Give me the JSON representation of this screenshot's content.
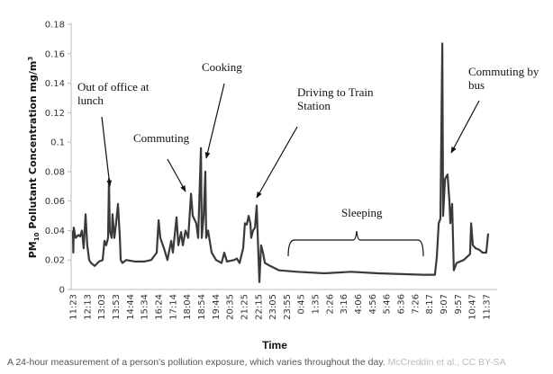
{
  "chart_data": {
    "type": "line",
    "title": "",
    "xlabel": "Time",
    "ylabel_prefix": "PM",
    "ylabel_sub": "10",
    "ylabel_rest": " Pollutant Concentration mg/m",
    "ylabel_sup": "3",
    "ylim": [
      0,
      0.18
    ],
    "yticks": [
      "0",
      "0.02",
      "0.04",
      "0.06",
      "0.08",
      "0.1",
      "0.12",
      "0.14",
      "0.16",
      "0.18"
    ],
    "xticks": [
      "11:23",
      "12:13",
      "13:03",
      "13:53",
      "14:44",
      "15:34",
      "16:24",
      "17:14",
      "18:04",
      "18:54",
      "19:44",
      "20:35",
      "21:25",
      "22:15",
      "23:05",
      "23:55",
      "0:45",
      "1:35",
      "2:26",
      "3:16",
      "4:06",
      "4:56",
      "5:46",
      "6:36",
      "7:26",
      "8:17",
      "9:07",
      "9:57",
      "10:47",
      "11:37"
    ],
    "x_unit": "hours since 11:23",
    "series": [
      {
        "name": "PM10",
        "color": "#3a3a3a",
        "x": [
          0,
          0.02,
          0.05,
          0.16,
          0.32,
          0.42,
          0.53,
          0.63,
          0.74,
          0.84,
          0.95,
          1.06,
          1.27,
          1.53,
          1.74,
          1.85,
          1.95,
          2.06,
          2.11,
          2.16,
          2.27,
          2.32,
          2.43,
          2.53,
          2.64,
          2.75,
          2.8,
          2.9,
          3.12,
          3.64,
          4.17,
          4.59,
          4.91,
          5.02,
          5.12,
          5.33,
          5.54,
          5.76,
          5.86,
          6.07,
          6.18,
          6.34,
          6.44,
          6.6,
          6.76,
          6.92,
          7.02,
          7.23,
          7.34,
          7.5,
          7.55,
          7.66,
          7.76,
          7.81,
          7.92,
          8.13,
          8.39,
          8.71,
          8.87,
          9.03,
          9.45,
          9.61,
          9.77,
          9.98,
          10.08,
          10.19,
          10.3,
          10.4,
          10.45,
          10.56,
          10.67,
          10.77,
          10.88,
          10.93,
          11.03,
          11.14,
          11.25,
          11.56,
          12.09,
          13.15,
          14.73,
          16.31,
          17.9,
          20.54,
          21.22,
          21.33,
          21.44,
          21.54,
          21.65,
          21.7,
          21.81,
          21.96,
          22.07,
          22.12,
          22.23,
          22.33,
          22.49,
          22.91,
          23.28,
          23.34,
          23.44,
          23.6,
          23.81,
          24.02,
          24.23,
          24.34
        ],
        "y": [
          0.04,
          0.025,
          0.042,
          0.035,
          0.037,
          0.036,
          0.04,
          0.028,
          0.051,
          0.03,
          0.02,
          0.018,
          0.016,
          0.019,
          0.02,
          0.033,
          0.03,
          0.035,
          0.075,
          0.04,
          0.035,
          0.051,
          0.035,
          0.045,
          0.058,
          0.035,
          0.02,
          0.018,
          0.02,
          0.019,
          0.019,
          0.02,
          0.025,
          0.047,
          0.035,
          0.028,
          0.02,
          0.033,
          0.025,
          0.049,
          0.03,
          0.039,
          0.03,
          0.04,
          0.035,
          0.065,
          0.05,
          0.045,
          0.035,
          0.096,
          0.035,
          0.05,
          0.08,
          0.035,
          0.04,
          0.025,
          0.02,
          0.018,
          0.025,
          0.019,
          0.02,
          0.021,
          0.018,
          0.028,
          0.045,
          0.044,
          0.05,
          0.045,
          0.035,
          0.04,
          0.042,
          0.057,
          0.02,
          0.005,
          0.03,
          0.025,
          0.018,
          0.016,
          0.013,
          0.012,
          0.011,
          0.012,
          0.011,
          0.01,
          0.01,
          0.022,
          0.045,
          0.048,
          0.167,
          0.05,
          0.075,
          0.078,
          0.06,
          0.045,
          0.058,
          0.013,
          0.018,
          0.02,
          0.024,
          0.045,
          0.03,
          0.028,
          0.027,
          0.025,
          0.025,
          0.038
        ]
      }
    ],
    "annotations": {
      "lunch": [
        "Out of office at",
        "lunch"
      ],
      "commuting": [
        "Commuting"
      ],
      "cooking": [
        "Cooking"
      ],
      "driving": [
        "Driving to Train",
        "Station"
      ],
      "sleeping": [
        "Sleeping"
      ],
      "bus": [
        "Commuting by",
        "bus"
      ]
    },
    "grid": false,
    "legend": "none"
  },
  "caption": {
    "text": "A 24-hour measurement of a person's pollution exposure, which varies throughout the day.",
    "credit": "McCreddin et al., CC BY-SA"
  }
}
